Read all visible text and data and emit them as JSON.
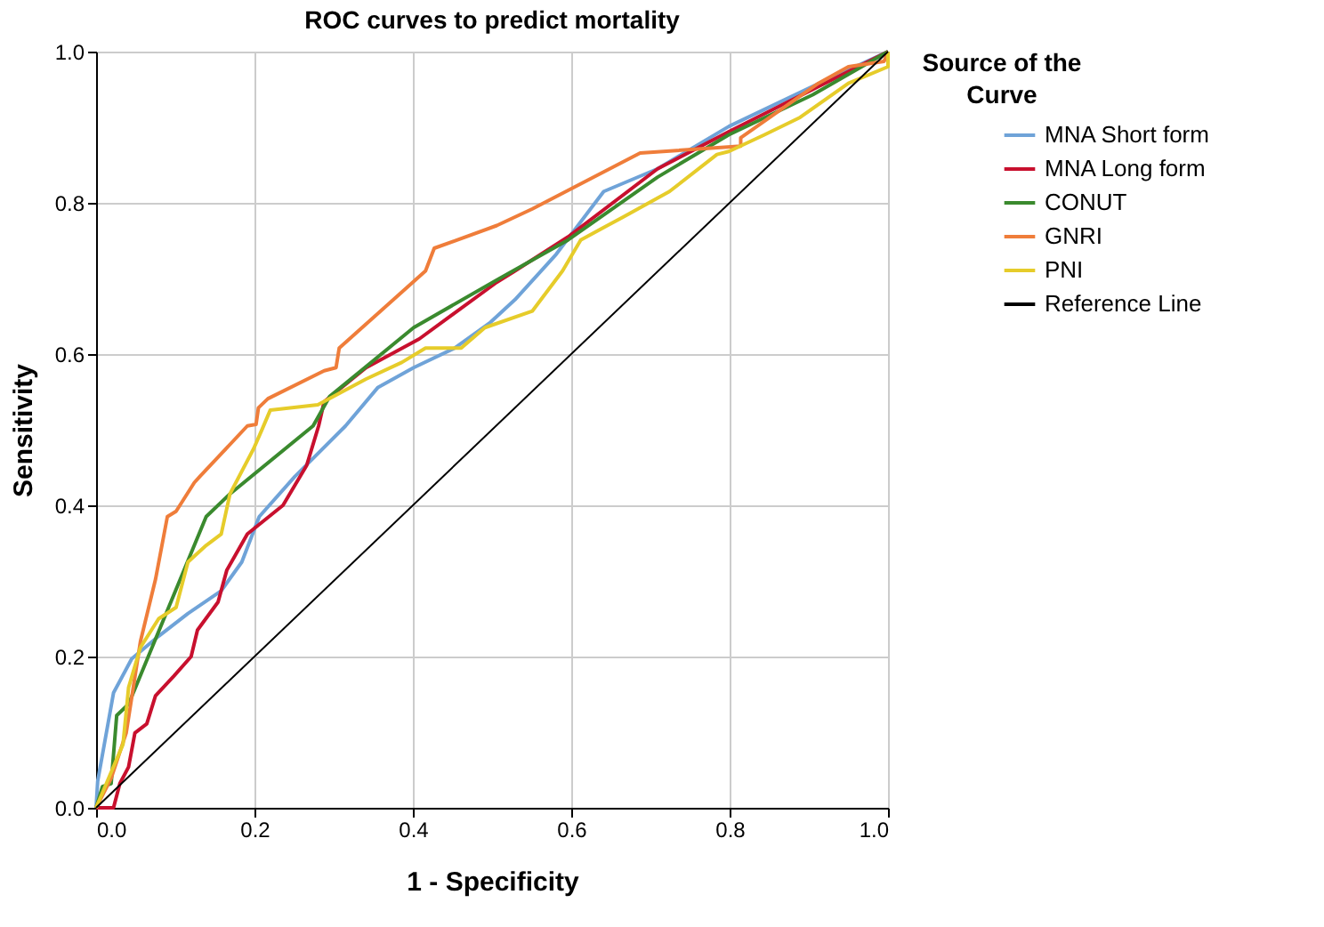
{
  "chart_data": {
    "type": "line",
    "title": "ROC curves to predict mortality",
    "xlabel": "1 - Specificity",
    "ylabel": "Sensitivity",
    "legend_title": "Source of the Curve",
    "legend": "right",
    "grid": true,
    "marker": "none",
    "line_style": "solid",
    "xlim": [
      0,
      1
    ],
    "ylim": [
      0,
      1
    ],
    "xticks": [
      {
        "value": 0,
        "label": "0.0"
      },
      {
        "value": 0.2,
        "label": "0.2"
      },
      {
        "value": 0.4,
        "label": "0.4"
      },
      {
        "value": 0.6,
        "label": "0.6"
      },
      {
        "value": 0.8,
        "label": "0.8"
      },
      {
        "value": 1,
        "label": "1.0"
      }
    ],
    "yticks": [
      {
        "value": 0,
        "label": "0.0"
      },
      {
        "value": 0.2,
        "label": "0.2"
      },
      {
        "value": 0.4,
        "label": "0.4"
      },
      {
        "value": 0.6,
        "label": "0.6"
      },
      {
        "value": 0.8,
        "label": "0.8"
      },
      {
        "value": 1,
        "label": "1.0"
      }
    ],
    "series": [
      {
        "name": "MNA Short form",
        "color": "#6fa3d8",
        "x": [
          0,
          0.002,
          0.022,
          0.045,
          0.079,
          0.116,
          0.158,
          0.184,
          0.206,
          0.251,
          0.315,
          0.356,
          0.401,
          0.453,
          0.498,
          0.529,
          0.581,
          0.641,
          0.709,
          0.799,
          0.905,
          1
        ],
        "values": [
          0,
          0.035,
          0.152,
          0.197,
          0.227,
          0.257,
          0.287,
          0.325,
          0.385,
          0.438,
          0.505,
          0.556,
          0.582,
          0.608,
          0.642,
          0.672,
          0.732,
          0.815,
          0.845,
          0.901,
          0.954,
          1
        ]
      },
      {
        "name": "MNA Long form",
        "color": "#c8102e",
        "x": [
          0,
          0.022,
          0.03,
          0.041,
          0.049,
          0.064,
          0.075,
          0.098,
          0.12,
          0.128,
          0.154,
          0.165,
          0.191,
          0.236,
          0.266,
          0.281,
          0.288,
          0.341,
          0.408,
          0.506,
          0.529,
          0.596,
          0.709,
          0.799,
          0.905,
          1
        ],
        "values": [
          0,
          0,
          0.032,
          0.054,
          0.099,
          0.111,
          0.148,
          0.174,
          0.2,
          0.235,
          0.272,
          0.314,
          0.362,
          0.4,
          0.453,
          0.505,
          0.537,
          0.582,
          0.62,
          0.695,
          0.71,
          0.755,
          0.845,
          0.894,
          0.95,
          1
        ]
      },
      {
        "name": "CONUT",
        "color": "#3a8a2e",
        "x": [
          0,
          0.008,
          0.019,
          0.026,
          0.041,
          0.139,
          0.169,
          0.274,
          0.295,
          0.401,
          0.506,
          0.596,
          0.709,
          0.799,
          0.905,
          1
        ],
        "values": [
          0,
          0.028,
          0.032,
          0.122,
          0.137,
          0.385,
          0.415,
          0.505,
          0.544,
          0.635,
          0.698,
          0.751,
          0.834,
          0.89,
          0.943,
          1
        ]
      },
      {
        "name": "GNRI",
        "color": "#ef7d3a",
        "x": [
          0,
          0.019,
          0.038,
          0.056,
          0.075,
          0.09,
          0.101,
          0.124,
          0.131,
          0.191,
          0.202,
          0.205,
          0.217,
          0.288,
          0.303,
          0.307,
          0.416,
          0.427,
          0.506,
          0.551,
          0.687,
          0.814,
          0.814,
          0.912,
          0.95,
          0.995,
          1
        ],
        "values": [
          0,
          0.039,
          0.099,
          0.22,
          0.302,
          0.385,
          0.392,
          0.43,
          0.438,
          0.505,
          0.507,
          0.529,
          0.541,
          0.578,
          0.582,
          0.608,
          0.71,
          0.74,
          0.77,
          0.792,
          0.866,
          0.875,
          0.886,
          0.958,
          0.98,
          0.987,
          1
        ]
      },
      {
        "name": "PNI",
        "color": "#e6cc2a",
        "x": [
          0,
          0.034,
          0.041,
          0.056,
          0.079,
          0.101,
          0.116,
          0.139,
          0.158,
          0.169,
          0.199,
          0.209,
          0.22,
          0.28,
          0.341,
          0.386,
          0.416,
          0.461,
          0.491,
          0.551,
          0.589,
          0.612,
          0.665,
          0.724,
          0.784,
          0.799,
          0.844,
          0.889,
          0.95,
          1,
          1
        ],
        "values": [
          0,
          0.084,
          0.159,
          0.212,
          0.25,
          0.265,
          0.325,
          0.347,
          0.362,
          0.415,
          0.475,
          0.499,
          0.526,
          0.533,
          0.567,
          0.589,
          0.608,
          0.608,
          0.635,
          0.657,
          0.71,
          0.751,
          0.781,
          0.815,
          0.864,
          0.868,
          0.89,
          0.913,
          0.958,
          0.98,
          1
        ]
      },
      {
        "name": "Reference Line",
        "color": "#000000",
        "x": [
          0,
          1
        ],
        "values": [
          0,
          1
        ]
      }
    ]
  }
}
